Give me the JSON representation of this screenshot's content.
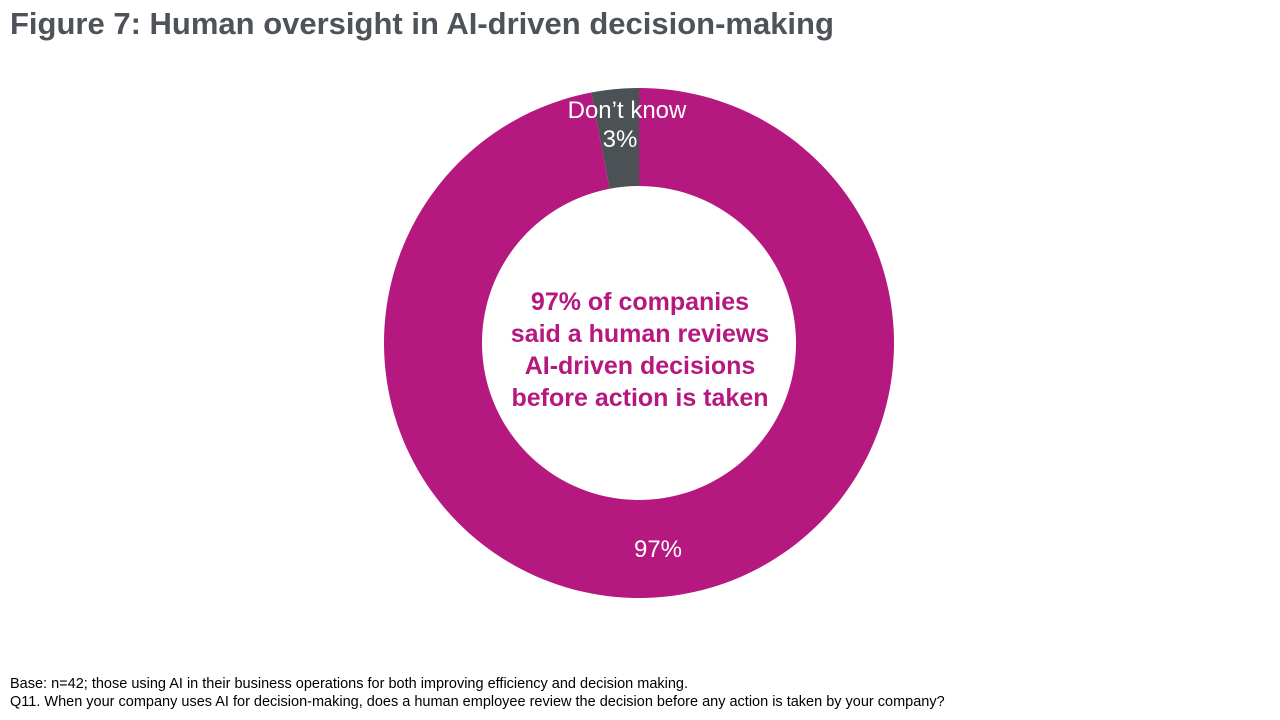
{
  "title": "Figure 7: Human oversight in AI-driven decision-making",
  "center_text": "97% of companies said a human reviews AI-driven decisions before action is taken",
  "footnotes": [
    "Base: n=42; those using AI in their business operations for both improving efficiency and decision making.",
    "Q11. When your company uses AI for decision-making, does a human employee review the decision before any action is taken by your company?"
  ],
  "colors": {
    "primary": "#b5187f",
    "secondary": "#4b5155",
    "title": "#4d5358"
  },
  "chart_data": {
    "type": "pie",
    "donut": true,
    "slices": [
      {
        "name": "Don’t know",
        "value": 3,
        "label": "3%",
        "color": "#4b5155"
      },
      {
        "name": "",
        "value": 97,
        "label": "97%",
        "color": "#b5187f"
      }
    ]
  }
}
